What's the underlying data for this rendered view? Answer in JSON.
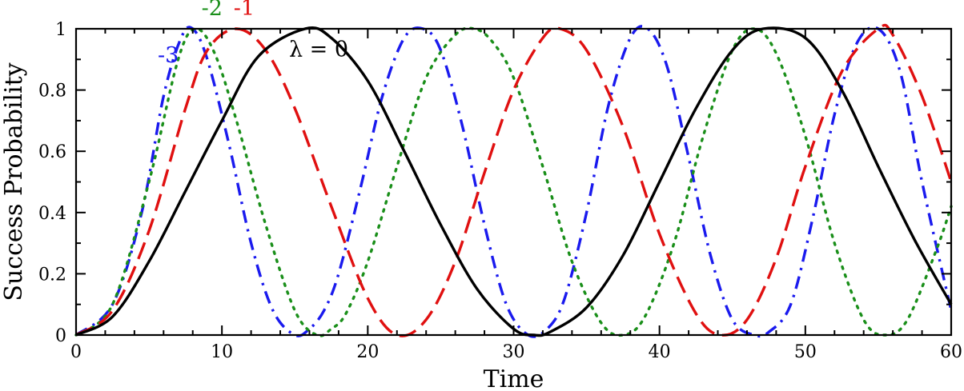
{
  "chart_data": {
    "type": "line",
    "xlabel": "Time",
    "ylabel": "Success Probability",
    "xlim": [
      0,
      60
    ],
    "ylim": [
      0,
      1
    ],
    "xticks": [
      0,
      10,
      20,
      30,
      40,
      50,
      60
    ],
    "yticks": [
      0,
      0.2,
      0.4,
      0.6,
      0.8,
      1
    ],
    "xtick_labels": [
      "0",
      "10",
      "20",
      "30",
      "40",
      "50",
      "60"
    ],
    "ytick_labels": [
      "0",
      "0.2",
      "0.4",
      "0.6",
      "0.8",
      "1"
    ],
    "grid": false,
    "series": [
      {
        "name": "λ = 0",
        "color": "#000000",
        "style": "solid",
        "x": [
          0,
          2.5,
          5,
          7.5,
          10,
          12.5,
          15.7,
          17.5,
          20,
          22.5,
          25,
          27.5,
          30,
          31.4,
          32.5,
          35,
          37.5,
          40,
          42.5,
          45,
          47.1,
          50,
          52.5,
          55,
          57.5,
          60
        ],
        "y": [
          0,
          0.06,
          0.24,
          0.47,
          0.7,
          0.91,
          1.0,
          0.97,
          0.83,
          0.6,
          0.36,
          0.15,
          0.02,
          0.0,
          0.01,
          0.09,
          0.26,
          0.5,
          0.74,
          0.93,
          1.0,
          0.97,
          0.8,
          0.55,
          0.31,
          0.1
        ]
      },
      {
        "name": "-1",
        "color": "#e01010",
        "style": "dashed",
        "x": [
          0,
          2.5,
          5,
          7.5,
          9,
          11,
          13,
          15,
          17.5,
          20,
          22,
          24,
          26,
          28,
          30,
          32,
          33.2,
          35,
          37.5,
          40,
          42.5,
          44.2,
          46,
          48,
          50,
          52.5,
          55,
          56,
          58,
          60
        ],
        "y": [
          0,
          0.08,
          0.34,
          0.74,
          0.93,
          1.0,
          0.93,
          0.74,
          0.42,
          0.12,
          0.0,
          0.05,
          0.24,
          0.53,
          0.8,
          0.97,
          1.0,
          0.93,
          0.68,
          0.33,
          0.07,
          0.0,
          0.05,
          0.25,
          0.55,
          0.86,
          1.0,
          0.98,
          0.78,
          0.5
        ]
      },
      {
        "name": "-2",
        "color": "#1a8f1a",
        "style": "dotted",
        "x": [
          0,
          2.5,
          5,
          7,
          8.2,
          9.5,
          11,
          13,
          15,
          16.5,
          17.5,
          18.5,
          20,
          22,
          24,
          26,
          27.3,
          28.5,
          30,
          32,
          34,
          36,
          37.5,
          39,
          41,
          43,
          45,
          46.5,
          48,
          50,
          52,
          54,
          55.5,
          57,
          59,
          60
        ],
        "y": [
          0,
          0.1,
          0.5,
          0.9,
          1.0,
          0.92,
          0.7,
          0.36,
          0.08,
          0.0,
          0.02,
          0.07,
          0.24,
          0.55,
          0.84,
          0.98,
          1.0,
          0.96,
          0.84,
          0.55,
          0.24,
          0.04,
          0.0,
          0.06,
          0.3,
          0.65,
          0.93,
          1.0,
          0.92,
          0.65,
          0.3,
          0.05,
          0.0,
          0.05,
          0.28,
          0.42
        ]
      },
      {
        "name": "-3",
        "color": "#1a1aee",
        "style": "dashdot",
        "x": [
          0,
          2.5,
          4.5,
          6,
          7.2,
          8,
          9,
          10.5,
          12,
          13.5,
          15,
          16,
          17,
          18,
          19.5,
          21,
          22.5,
          23.8,
          25,
          26.5,
          28,
          29.5,
          31,
          32.3,
          33.5,
          35,
          36.5,
          38,
          39.2,
          40.5,
          42,
          43.5,
          45,
          46.5,
          47.5,
          49,
          50.5,
          52,
          53.5,
          55,
          56.5,
          58,
          60
        ],
        "y": [
          0,
          0.1,
          0.4,
          0.78,
          0.97,
          1.0,
          0.9,
          0.62,
          0.3,
          0.08,
          0.0,
          0.02,
          0.08,
          0.2,
          0.48,
          0.78,
          0.97,
          1.0,
          0.93,
          0.68,
          0.36,
          0.1,
          0.0,
          0.02,
          0.12,
          0.4,
          0.75,
          0.97,
          1.0,
          0.88,
          0.58,
          0.26,
          0.05,
          0.0,
          0.01,
          0.1,
          0.38,
          0.72,
          0.95,
          1.0,
          0.86,
          0.5,
          0.08
        ]
      }
    ],
    "annotations": [
      {
        "text": "λ = 0",
        "x": 14.6,
        "y": 0.91,
        "color": "#000000"
      },
      {
        "text": "-1",
        "x": 10.8,
        "y": 1.045,
        "color": "#e01010"
      },
      {
        "text": "-2",
        "x": 8.6,
        "y": 1.045,
        "color": "#1a8f1a"
      },
      {
        "text": "-3",
        "x": 5.6,
        "y": 0.89,
        "color": "#1a1aee"
      }
    ]
  }
}
